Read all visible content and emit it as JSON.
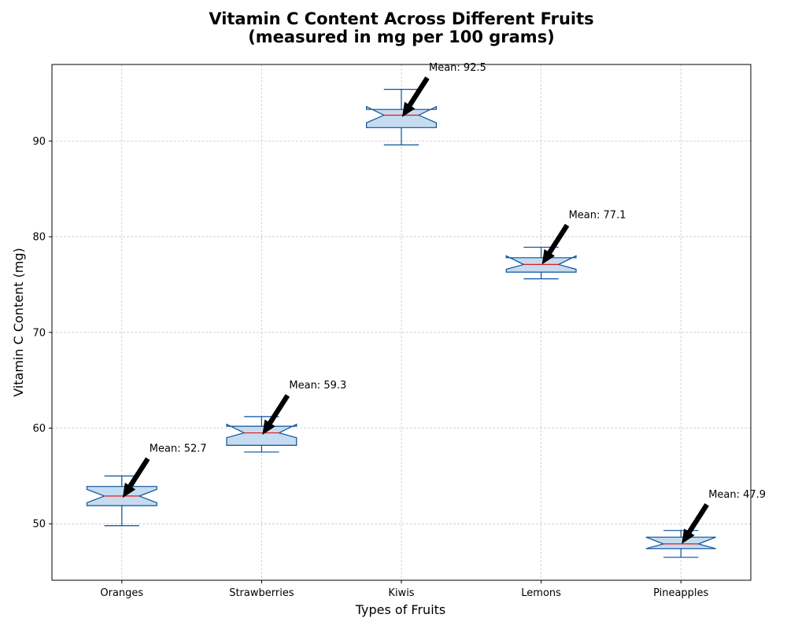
{
  "chart_data": {
    "type": "box",
    "title_line1": "Vitamin C Content Across Different Fruits",
    "title_line2": "(measured in mg per 100 grams)",
    "xlabel": "Types of Fruits",
    "ylabel": "Vitamin C Content (mg)",
    "ylim": [
      44.1,
      98.0
    ],
    "yticks": [
      50,
      60,
      70,
      80,
      90
    ],
    "grid": true,
    "notched": true,
    "categories": [
      "Oranges",
      "Strawberries",
      "Kiwis",
      "Lemons",
      "Pineapples"
    ],
    "boxes": [
      {
        "whisker_low": 49.8,
        "q1": 51.9,
        "median": 52.9,
        "q3": 53.9,
        "whisker_high": 55.0,
        "notch_low": 52.2,
        "notch_high": 53.6,
        "mean": 52.7,
        "mean_label": "Mean: 52.7"
      },
      {
        "whisker_low": 57.5,
        "q1": 58.2,
        "median": 59.5,
        "q3": 60.2,
        "whisker_high": 61.2,
        "notch_low": 59.0,
        "notch_high": 60.4,
        "mean": 59.3,
        "mean_label": "Mean: 59.3"
      },
      {
        "whisker_low": 89.6,
        "q1": 91.4,
        "median": 92.7,
        "q3": 93.3,
        "whisker_high": 95.4,
        "notch_low": 91.9,
        "notch_high": 93.6,
        "mean": 92.5,
        "mean_label": "Mean: 92.5"
      },
      {
        "whisker_low": 75.6,
        "q1": 76.3,
        "median": 77.1,
        "q3": 77.8,
        "whisker_high": 78.9,
        "notch_low": 76.6,
        "notch_high": 78.0,
        "mean": 77.1,
        "mean_label": "Mean: 77.1"
      },
      {
        "whisker_low": 46.5,
        "q1": 47.4,
        "median": 47.9,
        "q3": 48.6,
        "whisker_high": 49.3,
        "notch_low": 47.4,
        "notch_high": 48.6,
        "mean": 47.9,
        "mean_label": "Mean: 47.9"
      }
    ],
    "colors": {
      "box_fill": "#c6dbef",
      "box_edge": "#08519c",
      "median": "#e31a1c",
      "grid": "#c8c8c8",
      "arrow": "#000000"
    }
  }
}
